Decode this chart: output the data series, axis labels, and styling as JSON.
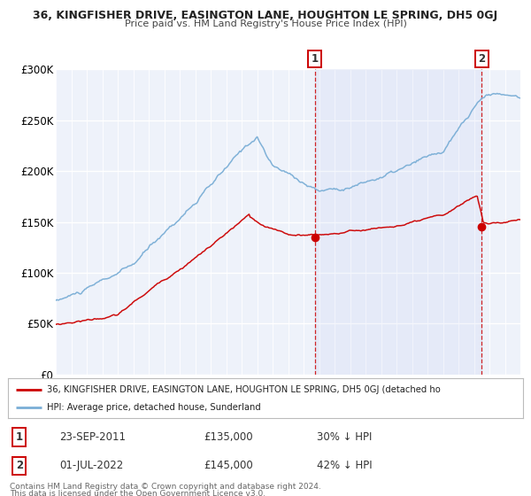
{
  "title_line1": "36, KINGFISHER DRIVE, EASINGTON LANE, HOUGHTON LE SPRING, DH5 0GJ",
  "title_line2": "Price paid vs. HM Land Registry's House Price Index (HPI)",
  "ylim": [
    0,
    300000
  ],
  "yticks": [
    0,
    50000,
    100000,
    150000,
    200000,
    250000,
    300000
  ],
  "ytick_labels": [
    "£0",
    "£50K",
    "£100K",
    "£150K",
    "£200K",
    "£250K",
    "£300K"
  ],
  "x_start_year": 1995,
  "x_end_year": 2025,
  "legend_line1": "36, KINGFISHER DRIVE, EASINGTON LANE, HOUGHTON LE SPRING, DH5 0GJ (detached ho",
  "legend_line2": "HPI: Average price, detached house, Sunderland",
  "marker1_date": "23-SEP-2011",
  "marker1_value": 135000,
  "marker1_x": 2011.73,
  "marker2_date": "01-JUL-2022",
  "marker2_value": 145000,
  "marker2_x": 2022.5,
  "red_color": "#cc0000",
  "blue_color": "#7aaed6",
  "bg_color": "#eef2fa",
  "footer_line1": "Contains HM Land Registry data © Crown copyright and database right 2024.",
  "footer_line2": "This data is licensed under the Open Government Licence v3.0."
}
